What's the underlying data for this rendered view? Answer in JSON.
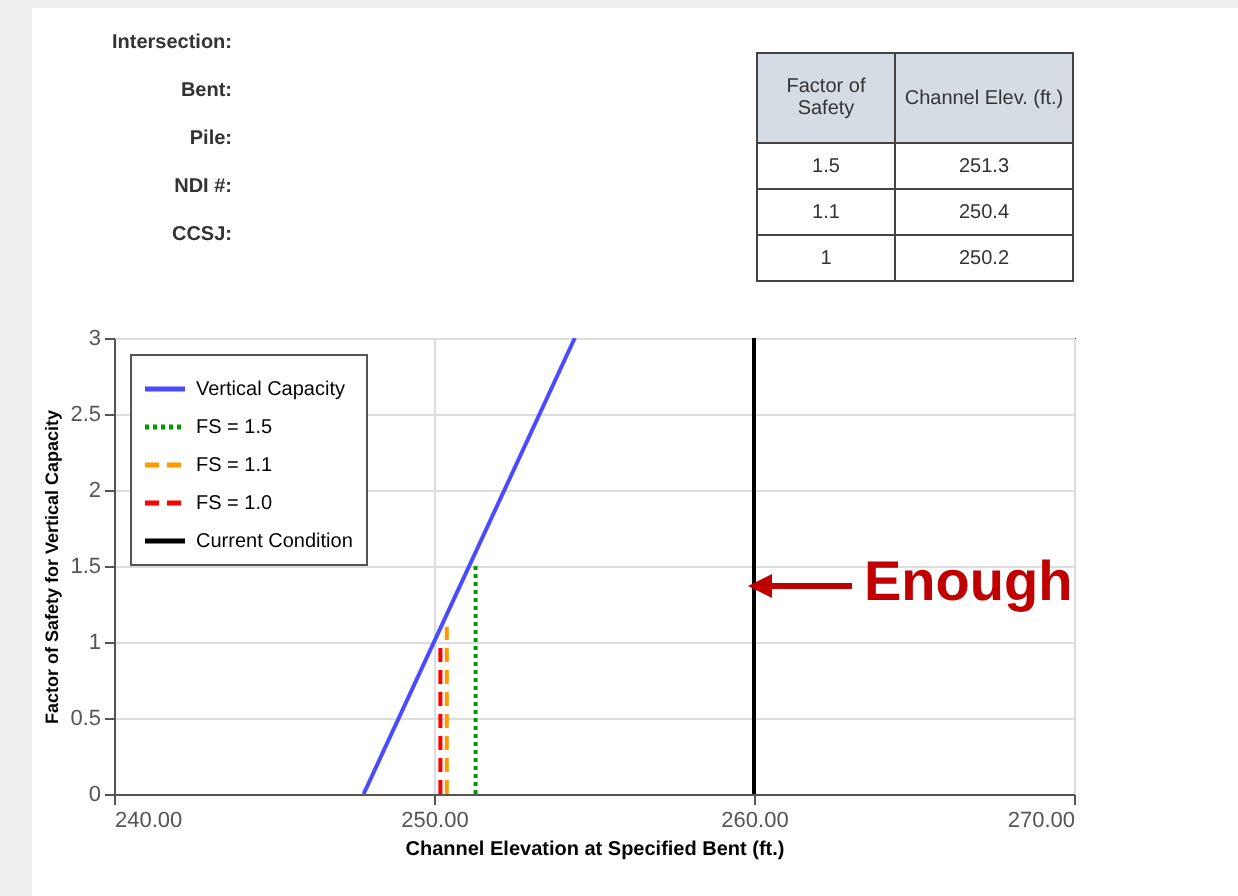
{
  "chart_data": {
    "type": "line",
    "xlabel": "Channel Elevation at Specified Bent (ft.)",
    "ylabel": "Factor of Safety for Vertical Capacity",
    "xlim": [
      240,
      270
    ],
    "ylim": [
      0,
      3
    ],
    "xticks": [
      {
        "value": 240,
        "label": "240.00"
      },
      {
        "value": 250,
        "label": "250.00"
      },
      {
        "value": 260,
        "label": "260.00"
      },
      {
        "value": 270,
        "label": "270.00"
      }
    ],
    "yticks": [
      0,
      0.5,
      1,
      1.5,
      2,
      2.5,
      3
    ],
    "grid": true,
    "legend": "top left",
    "series": [
      {
        "name": "Vertical Capacity",
        "color": "#4a4aff",
        "line_style": "solid",
        "x": [
          247.8,
          254.4
        ],
        "values": [
          0,
          3
        ]
      },
      {
        "name": "FS = 1.5",
        "color": "#009900",
        "line_style": "dotted",
        "x": [
          251.3,
          251.3
        ],
        "values": [
          0,
          1.5
        ]
      },
      {
        "name": "FS = 1.1",
        "color": "#ff9900",
        "line_style": "dashed",
        "x": [
          250.4,
          250.4
        ],
        "values": [
          0,
          1.1
        ]
      },
      {
        "name": "FS = 1.0",
        "color": "#ff0000",
        "line_style": "dashed",
        "x": [
          250.2,
          250.2
        ],
        "values": [
          0,
          1.0
        ]
      },
      {
        "name": "Current Condition",
        "color": "#000000",
        "line_style": "solid",
        "x": [
          260,
          260
        ],
        "values": [
          0,
          3
        ]
      }
    ],
    "annotations": [
      "Intersection:",
      "Bent:",
      "Pile:",
      "NDI #:",
      "CCSJ:",
      "Factor of Safety",
      "Channel Elev. (ft.)",
      "1.5",
      "251.3",
      "1.1",
      "250.4",
      "1",
      "250.2",
      {
        "text": "Enough",
        "x": 260,
        "y": 1.3
      }
    ]
  }
}
